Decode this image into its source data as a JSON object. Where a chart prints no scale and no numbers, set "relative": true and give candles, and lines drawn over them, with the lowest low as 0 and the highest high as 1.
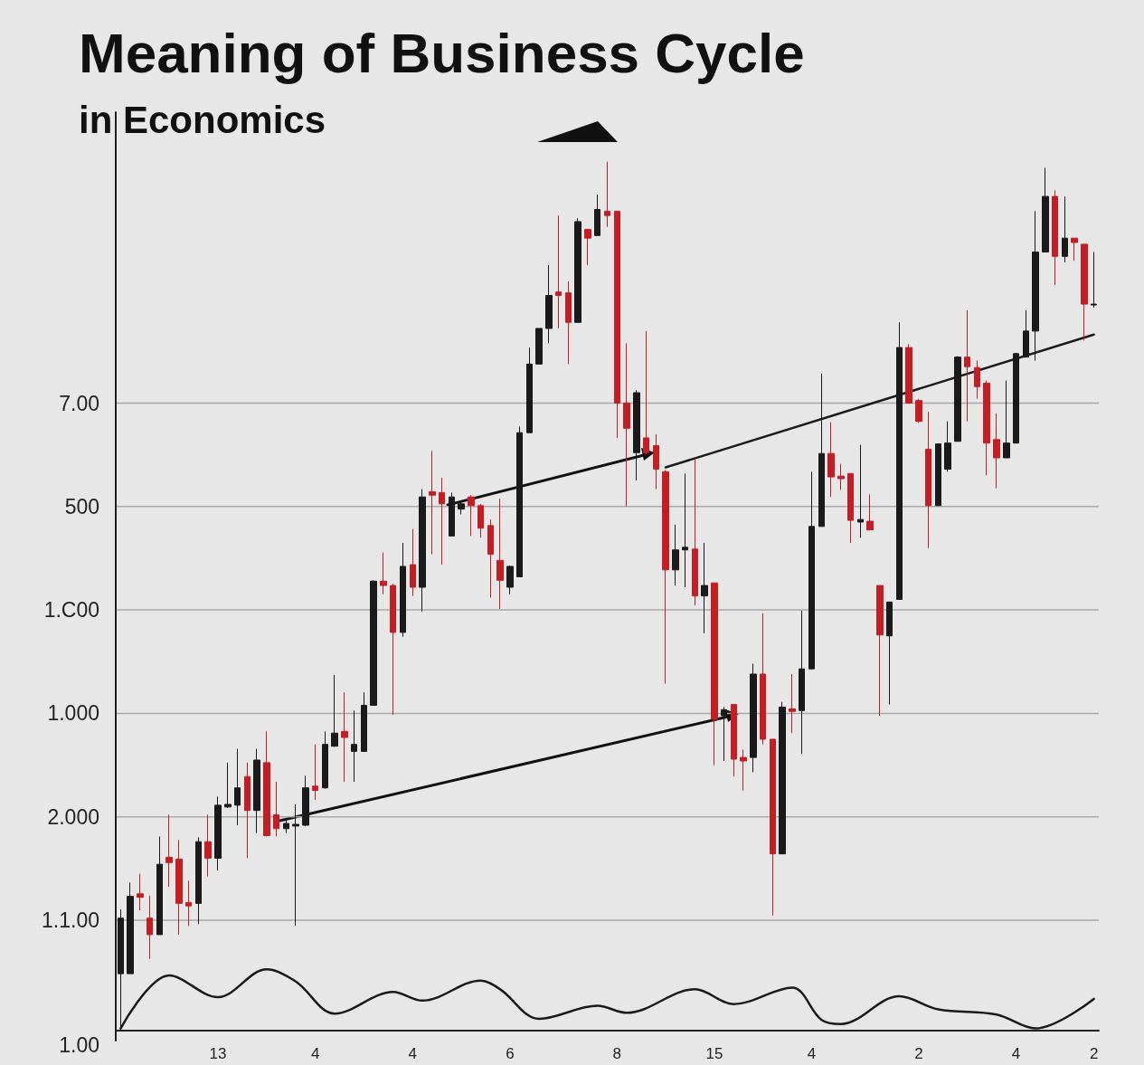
{
  "chart_data": {
    "type": "candlestick",
    "title": "Meaning of Business Cycle",
    "subtitle": "in Economics",
    "annotations": [
      "7.00",
      "500",
      "1.C00",
      "1.000",
      "2.000",
      "1.1.00",
      "1.00"
    ],
    "categories": [
      null,
      null,
      null,
      null,
      null,
      null,
      null,
      null,
      null,
      null,
      "13",
      null,
      null,
      null,
      null,
      null,
      null,
      null,
      null,
      null,
      "4",
      null,
      null,
      null,
      null,
      null,
      null,
      null,
      null,
      null,
      "4",
      null,
      null,
      null,
      null,
      null,
      null,
      null,
      null,
      null,
      "6",
      null,
      null,
      null,
      null,
      null,
      null,
      null,
      null,
      null,
      null,
      "8",
      null,
      null,
      null,
      null,
      null,
      null,
      null,
      null,
      null,
      "15",
      null,
      null,
      null,
      null,
      null,
      null,
      null,
      null,
      null,
      "4",
      null,
      null,
      null,
      null,
      null,
      null,
      null,
      null,
      null,
      null,
      "2",
      null,
      null,
      null,
      null,
      null,
      null,
      null,
      null,
      null,
      "4",
      null,
      null,
      null,
      null,
      null,
      null,
      null,
      "2"
    ],
    "relative": true,
    "grid": "y",
    "series": [
      {
        "type": "line",
        "color": "#1a1a1a",
        "marker": "none",
        "values": [
          0.002,
          null,
          null,
          null,
          null,
          0.063,
          null,
          null,
          null,
          null,
          0.038,
          null,
          null,
          null,
          null,
          0.07,
          null,
          null,
          0.056,
          null,
          null,
          null,
          0.019,
          null,
          null,
          null,
          null,
          null,
          0.044,
          null,
          null,
          0.034,
          null,
          null,
          null,
          null,
          null,
          0.057,
          null,
          0.047,
          null,
          null,
          null,
          0.013,
          null,
          null,
          null,
          null,
          null,
          0.028,
          null,
          null,
          0.02,
          null,
          null,
          null,
          null,
          null,
          null,
          0.047,
          null,
          null,
          null,
          0.03,
          null,
          null,
          null,
          null,
          null,
          0.049,
          null,
          null,
          0.012,
          null,
          0.007,
          null,
          null,
          null,
          null,
          null,
          0.039,
          null,
          null,
          null,
          0.024,
          null,
          null,
          null,
          null,
          null,
          0.018,
          null,
          null,
          null,
          0.002,
          null,
          null,
          null,
          null,
          null,
          0.036
        ]
      },
      {
        "type": "line",
        "color": "#1a1a1a",
        "marker": "none",
        "values": [
          null,
          null,
          null,
          null,
          null,
          null,
          null,
          null,
          null,
          null,
          null,
          null,
          null,
          null,
          null,
          null,
          null,
          null,
          null,
          null,
          null,
          null,
          null,
          null,
          null,
          null,
          null,
          null,
          null,
          null,
          null,
          null,
          null,
          null,
          null,
          null,
          null,
          null,
          null,
          null,
          null,
          null,
          null,
          null,
          null,
          null,
          null,
          null,
          null,
          null,
          null,
          null,
          null,
          null,
          null,
          null,
          0.648,
          null,
          null,
          null,
          null,
          null,
          null,
          null,
          null,
          null,
          null,
          null,
          null,
          null,
          null,
          null,
          null,
          null,
          null,
          null,
          null,
          null,
          null,
          null,
          null,
          null,
          null,
          null,
          null,
          null,
          null,
          null,
          null,
          null,
          null,
          null,
          null,
          null,
          null,
          null,
          null,
          null,
          null,
          null,
          0.801
        ]
      },
      {
        "ohlc": [
          [
            0.065,
            0.139,
            0,
            0.129
          ],
          [
            0.065,
            0.17,
            0.065,
            0.154
          ],
          [
            0.157,
            0.18,
            0.138,
            0.153
          ],
          [
            0.129,
            0.155,
            0.082,
            0.11
          ],
          [
            0.11,
            0.223,
            0.11,
            0.191
          ],
          [
            0.199,
            0.248,
            0.165,
            0.193
          ],
          [
            0.197,
            0.219,
            0.11,
            0.146
          ],
          [
            0.147,
            0.172,
            0.12,
            0.143
          ],
          [
            0.146,
            0.222,
            0.122,
            0.217
          ],
          [
            0.217,
            0.248,
            0.177,
            0.198
          ],
          [
            0.198,
            0.269,
            0.184,
            0.259
          ],
          [
            0.257,
            0.308,
            0.256,
            0.26
          ],
          [
            0.259,
            0.324,
            0.236,
            0.279
          ],
          [
            0.292,
            0.308,
            0.198,
            0.253
          ],
          [
            0.253,
            0.324,
            0.227,
            0.311
          ],
          [
            0.308,
            0.344,
            0.223,
            0.224
          ],
          [
            0.248,
            0.286,
            0.223,
            0.232
          ],
          [
            0.232,
            0.244,
            0.227,
            0.238
          ],
          [
            0.235,
            0.26,
            0.12,
            0.237
          ],
          [
            0.236,
            0.293,
            0.235,
            0.279
          ],
          [
            0.281,
            0.329,
            0.265,
            0.276
          ],
          [
            0.279,
            0.344,
            0.278,
            0.329
          ],
          [
            0.327,
            0.409,
            0.326,
            0.342
          ],
          [
            0.344,
            0.389,
            0.286,
            0.337
          ],
          [
            0.321,
            0.368,
            0.286,
            0.329
          ],
          [
            0.321,
            0.389,
            0.321,
            0.374
          ],
          [
            0.374,
            0.518,
            0.374,
            0.517
          ],
          [
            0.517,
            0.55,
            0.502,
            0.512
          ],
          [
            0.512,
            0.514,
            0.363,
            0.458
          ],
          [
            0.458,
            0.561,
            0.453,
            0.534
          ],
          [
            0.536,
            0.577,
            0.5,
            0.51
          ],
          [
            0.51,
            0.623,
            0.482,
            0.614
          ],
          [
            0.62,
            0.667,
            0.548,
            0.616
          ],
          [
            0.619,
            0.636,
            0.536,
            0.606
          ],
          [
            0.569,
            0.619,
            0.569,
            0.614
          ],
          [
            0.6,
            0.61,
            0.594,
            0.606
          ],
          [
            0.614,
            0.616,
            0.569,
            0.604
          ],
          [
            0.604,
            0.606,
            0.567,
            0.578
          ],
          [
            0.581,
            0.588,
            0.498,
            0.548
          ],
          [
            0.541,
            0.612,
            0.485,
            0.518
          ],
          [
            0.51,
            0.535,
            0.502,
            0.534
          ],
          [
            0.522,
            0.695,
            0.522,
            0.688
          ],
          [
            0.688,
            0.786,
            0.688,
            0.767
          ],
          [
            0.767,
            0.808,
            0.767,
            0.808
          ],
          [
            0.808,
            0.881,
            0.791,
            0.846
          ],
          [
            0.85,
            0.938,
            0.808,
            0.846
          ],
          [
            0.849,
            0.862,
            0.767,
            0.815
          ],
          [
            0.815,
            0.935,
            0.815,
            0.931
          ],
          [
            0.922,
            0.922,
            0.881,
            0.912
          ],
          [
            0.915,
            0.962,
            0.915,
            0.945
          ],
          [
            0.943,
            1,
            0.925,
            0.938
          ],
          [
            0.943,
            0.943,
            0.682,
            0.722
          ],
          [
            0.722,
            0.791,
            0.603,
            0.693
          ],
          [
            0.665,
            0.737,
            0.633,
            0.734
          ],
          [
            0.682,
            0.805,
            0.663,
            0.665
          ],
          [
            0.673,
            0.686,
            0.623,
            0.646
          ],
          [
            0.643,
            0.645,
            0.399,
            0.53
          ],
          [
            0.53,
            0.582,
            0.512,
            0.553
          ],
          [
            0.553,
            0.641,
            0.51,
            0.556
          ],
          [
            0.554,
            0.658,
            0.489,
            0.5
          ],
          [
            0.5,
            0.561,
            0.457,
            0.512
          ],
          [
            0.515,
            0.515,
            0.305,
            0.358
          ],
          [
            0.362,
            0.372,
            0.31,
            0.369
          ],
          [
            0.375,
            0.375,
            0.292,
            0.312
          ],
          [
            0.314,
            0.323,
            0.276,
            0.31
          ],
          [
            0.314,
            0.422,
            0.297,
            0.41
          ],
          [
            0.41,
            0.48,
            0.329,
            0.335
          ],
          [
            0.335,
            0.335,
            0.132,
            0.203
          ],
          [
            0.203,
            0.378,
            0.203,
            0.372
          ],
          [
            0.37,
            0.41,
            0.342,
            0.367
          ],
          [
            0.368,
            0.483,
            0.318,
            0.416
          ],
          [
            0.416,
            0.643,
            0.416,
            0.58
          ],
          [
            0.58,
            0.756,
            0.58,
            0.664
          ],
          [
            0.664,
            0.7,
            0.614,
            0.637
          ],
          [
            0.638,
            0.652,
            0.622,
            0.635
          ],
          [
            0.641,
            0.641,
            0.561,
            0.587
          ],
          [
            0.585,
            0.674,
            0.567,
            0.588
          ],
          [
            0.586,
            0.617,
            0.576,
            0.576
          ],
          [
            0.512,
            0.512,
            0.362,
            0.455
          ],
          [
            0.454,
            0.493,
            0.375,
            0.493
          ],
          [
            0.496,
            0.815,
            0.496,
            0.786
          ],
          [
            0.786,
            0.79,
            0.722,
            0.722
          ],
          [
            0.725,
            0.727,
            0.699,
            0.701
          ],
          [
            0.669,
            0.712,
            0.555,
            0.604
          ],
          [
            0.604,
            0.675,
            0.604,
            0.675
          ],
          [
            0.646,
            0.701,
            0.643,
            0.676
          ],
          [
            0.678,
            0.776,
            0.678,
            0.775
          ],
          [
            0.775,
            0.829,
            0.701,
            0.764
          ],
          [
            0.763,
            0.771,
            0.727,
            0.741
          ],
          [
            0.745,
            0.748,
            0.639,
            0.676
          ],
          [
            0.68,
            0.71,
            0.624,
            0.659
          ],
          [
            0.659,
            0.748,
            0.659,
            0.676
          ],
          [
            0.676,
            0.78,
            0.676,
            0.779
          ],
          [
            0.775,
            0.829,
            0.775,
            0.805
          ],
          [
            0.805,
            0.943,
            0.771,
            0.896
          ],
          [
            0.896,
            0.993,
            0.896,
            0.96
          ],
          [
            0.96,
            0.967,
            0.858,
            0.891
          ],
          [
            0.891,
            0.96,
            0.884,
            0.912
          ],
          [
            0.912,
            0.912,
            0.886,
            0.907
          ],
          [
            0.905,
            0.905,
            0.794,
            0.836
          ],
          [
            0.835,
            0.896,
            0.832,
            0.836
          ]
        ],
        "colors": [
          "#1a1a1a",
          "#1a1a1a",
          "#c41e24",
          "#c41e24",
          "#1a1a1a",
          "#c41e24",
          "#c41e24",
          "#c41e24",
          "#1a1a1a",
          "#c41e24",
          "#1a1a1a",
          "#1a1a1a",
          "#1a1a1a",
          "#c41e24",
          "#1a1a1a",
          "#c41e24",
          "#c41e24",
          "#1a1a1a",
          "#1a1a1a",
          "#1a1a1a",
          "#c41e24",
          "#1a1a1a",
          "#1a1a1a",
          "#c41e24",
          "#1a1a1a",
          "#1a1a1a",
          "#1a1a1a",
          "#c41e24",
          "#c41e24",
          "#1a1a1a",
          "#c41e24",
          "#1a1a1a",
          "#c41e24",
          "#c41e24",
          "#1a1a1a",
          "#1a1a1a",
          "#c41e24",
          "#c41e24",
          "#c41e24",
          "#c41e24",
          "#1a1a1a",
          "#1a1a1a",
          "#1a1a1a",
          "#1a1a1a",
          "#1a1a1a",
          "#c41e24",
          "#c41e24",
          "#1a1a1a",
          "#c41e24",
          "#1a1a1a",
          "#c41e24",
          "#c41e24",
          "#c41e24",
          "#1a1a1a",
          "#c41e24",
          "#c41e24",
          "#c41e24",
          "#1a1a1a",
          "#1a1a1a",
          "#c41e24",
          "#1a1a1a",
          "#c41e24",
          "#1a1a1a",
          "#c41e24",
          "#c41e24",
          "#1a1a1a",
          "#c41e24",
          "#c41e24",
          "#1a1a1a",
          "#c41e24",
          "#1a1a1a",
          "#1a1a1a",
          "#1a1a1a",
          "#c41e24",
          "#c41e24",
          "#c41e24",
          "#1a1a1a",
          "#c41e24",
          "#c41e24",
          "#1a1a1a",
          "#1a1a1a",
          "#c41e24",
          "#c41e24",
          "#c41e24",
          "#1a1a1a",
          "#1a1a1a",
          "#1a1a1a",
          "#c41e24",
          "#c41e24",
          "#c41e24",
          "#c41e24",
          "#1a1a1a",
          "#1a1a1a",
          "#1a1a1a",
          "#1a1a1a",
          "#1a1a1a",
          "#c41e24",
          "#1a1a1a",
          "#c41e24",
          "#c41e24",
          "#1a1a1a"
        ]
      }
    ]
  }
}
